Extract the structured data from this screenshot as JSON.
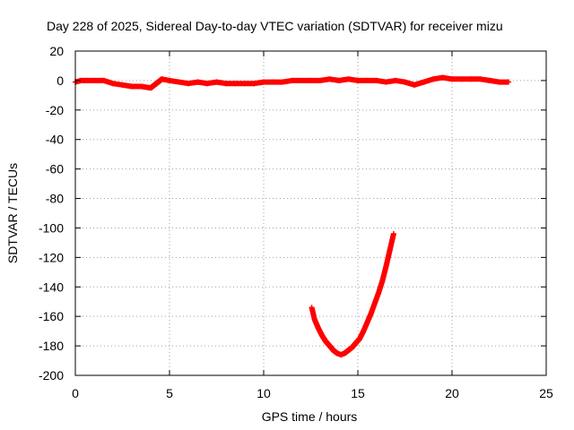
{
  "chart_data": {
    "type": "scatter",
    "title": "Day 228 of 2025, Sidereal Day-to-day VTEC variation (SDTVAR) for receiver mizu",
    "xlabel": "GPS time / hours",
    "ylabel": "SDTVAR / TECUs",
    "xlim": [
      0,
      25
    ],
    "ylim": [
      -200,
      20
    ],
    "xticks": [
      0,
      5,
      10,
      15,
      20,
      25
    ],
    "yticks": [
      20,
      0,
      -20,
      -40,
      -60,
      -80,
      -100,
      -120,
      -140,
      -160,
      -180,
      -200
    ],
    "grid": true,
    "legend": "none",
    "color": "#ff0000",
    "series": [
      {
        "values": [
          [
            0.0,
            -1
          ],
          [
            0.3,
            0
          ],
          [
            0.6,
            0
          ],
          [
            1.0,
            0
          ],
          [
            1.5,
            0
          ],
          [
            2.0,
            -2
          ],
          [
            2.5,
            -3
          ],
          [
            3.0,
            -4
          ],
          [
            3.5,
            -4
          ],
          [
            4.0,
            -5
          ],
          [
            4.3,
            -2
          ],
          [
            4.6,
            1
          ],
          [
            5.0,
            0
          ],
          [
            5.5,
            -1
          ],
          [
            6.0,
            -2
          ],
          [
            6.5,
            -1
          ],
          [
            7.0,
            -2
          ],
          [
            7.5,
            -1
          ],
          [
            8.0,
            -2
          ],
          [
            8.5,
            -2
          ],
          [
            9.0,
            -2
          ],
          [
            9.5,
            -2
          ],
          [
            10.0,
            -1
          ],
          [
            10.5,
            -1
          ],
          [
            11.0,
            -1
          ],
          [
            11.5,
            0
          ],
          [
            12.0,
            0
          ],
          [
            12.5,
            0
          ],
          [
            13.0,
            0
          ],
          [
            13.5,
            1
          ],
          [
            14.0,
            0
          ],
          [
            14.5,
            1
          ],
          [
            15.0,
            0
          ],
          [
            15.5,
            0
          ],
          [
            16.0,
            0
          ],
          [
            16.5,
            -1
          ],
          [
            17.0,
            0
          ],
          [
            17.5,
            -1
          ],
          [
            18.0,
            -3
          ],
          [
            18.5,
            -1
          ],
          [
            19.0,
            1
          ],
          [
            19.5,
            2
          ],
          [
            20.0,
            1
          ],
          [
            20.5,
            1
          ],
          [
            21.0,
            1
          ],
          [
            21.5,
            1
          ],
          [
            22.0,
            0
          ],
          [
            22.5,
            -1
          ],
          [
            23.0,
            -1
          ]
        ]
      },
      {
        "values": [
          [
            12.55,
            -154
          ],
          [
            12.7,
            -162
          ],
          [
            12.9,
            -168
          ],
          [
            13.1,
            -173
          ],
          [
            13.3,
            -177
          ],
          [
            13.5,
            -180
          ],
          [
            13.7,
            -183
          ],
          [
            13.9,
            -185
          ],
          [
            14.1,
            -186
          ],
          [
            14.3,
            -185
          ],
          [
            14.5,
            -183
          ],
          [
            14.7,
            -181
          ],
          [
            14.9,
            -178
          ],
          [
            15.1,
            -175
          ],
          [
            15.3,
            -170
          ],
          [
            15.5,
            -164
          ],
          [
            15.7,
            -158
          ],
          [
            15.9,
            -151
          ],
          [
            16.1,
            -144
          ],
          [
            16.3,
            -136
          ],
          [
            16.5,
            -126
          ],
          [
            16.7,
            -115
          ],
          [
            16.9,
            -104
          ]
        ]
      }
    ]
  }
}
